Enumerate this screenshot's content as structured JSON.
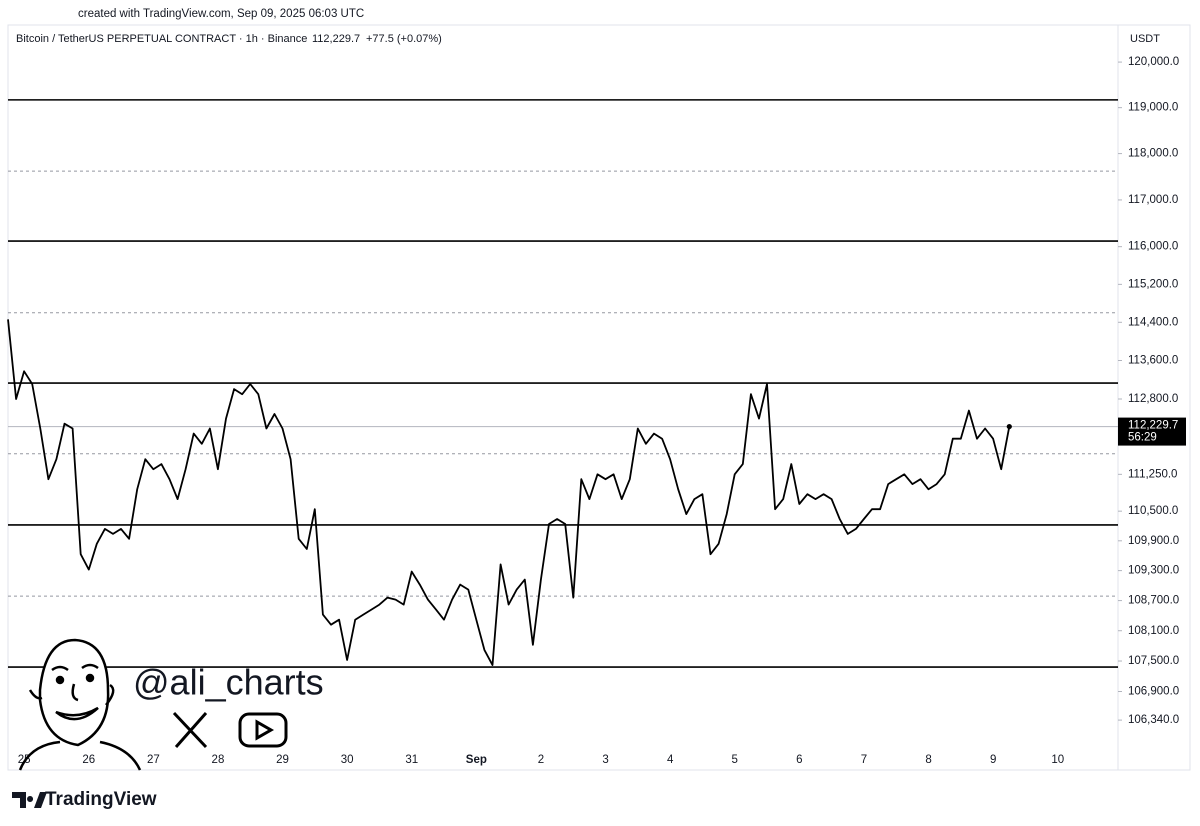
{
  "chart_data": {
    "type": "line",
    "header": "created with TradingView.com, Sep 09, 2025 06:03 UTC",
    "title": "Bitcoin / TetherUS PERPETUAL CONTRACT · 1h · Binance",
    "change": "+77.5 (+0.07%)",
    "currency": "USDT",
    "countdown": "56:29",
    "watermark": "@ali_charts",
    "footer": "TradingView",
    "last_price": {
      "value": 112229.7,
      "label": "112,229.7"
    },
    "color": "#000000",
    "log_scale": true,
    "ylim": [
      105370,
      120820
    ],
    "yticks": [
      {
        "value": 120000,
        "label": "120,000.0"
      },
      {
        "value": 119000,
        "label": "119,000.0"
      },
      {
        "value": 118000,
        "label": "118,000.0"
      },
      {
        "value": 117000,
        "label": "117,000.0"
      },
      {
        "value": 116000,
        "label": "116,000.0"
      },
      {
        "value": 115200,
        "label": "115,200.0"
      },
      {
        "value": 114400,
        "label": "114,400.0"
      },
      {
        "value": 113600,
        "label": "113,600.0"
      },
      {
        "value": 112800,
        "label": "112,800.0"
      },
      {
        "value": 111250,
        "label": "111,250.0"
      },
      {
        "value": 110500,
        "label": "110,500.0"
      },
      {
        "value": 109900,
        "label": "109,900.0"
      },
      {
        "value": 109300,
        "label": "109,300.0"
      },
      {
        "value": 108700,
        "label": "108,700.0"
      },
      {
        "value": 108100,
        "label": "108,100.0"
      },
      {
        "value": 107500,
        "label": "107,500.0"
      },
      {
        "value": 106900,
        "label": "106,900.0"
      },
      {
        "value": 106340,
        "label": "106,340.0"
      }
    ],
    "hlines": [
      {
        "value": 119170,
        "style": "solid"
      },
      {
        "value": 117620,
        "style": "dashed"
      },
      {
        "value": 116120,
        "style": "solid"
      },
      {
        "value": 114600,
        "style": "dashed"
      },
      {
        "value": 113130,
        "style": "solid"
      },
      {
        "value": 111670,
        "style": "dashed"
      },
      {
        "value": 110220,
        "style": "solid"
      },
      {
        "value": 108790,
        "style": "dashed"
      },
      {
        "value": 107380,
        "style": "solid"
      }
    ],
    "categories": [
      null,
      null,
      "25",
      null,
      null,
      null,
      null,
      null,
      null,
      null,
      "26",
      null,
      null,
      null,
      null,
      null,
      null,
      null,
      "27",
      null,
      null,
      null,
      null,
      null,
      null,
      null,
      "28",
      null,
      null,
      null,
      null,
      null,
      null,
      null,
      "29",
      null,
      null,
      null,
      null,
      null,
      null,
      null,
      "30",
      null,
      null,
      null,
      null,
      null,
      null,
      null,
      "31",
      null,
      null,
      null,
      null,
      null,
      null,
      null,
      "Sep",
      null,
      null,
      null,
      null,
      null,
      null,
      null,
      "2",
      null,
      null,
      null,
      null,
      null,
      null,
      null,
      "3",
      null,
      null,
      null,
      null,
      null,
      null,
      null,
      "4",
      null,
      null,
      null,
      null,
      null,
      null,
      null,
      "5",
      null,
      null,
      null,
      null,
      null,
      null,
      null,
      "6",
      null,
      null,
      null,
      null,
      null,
      null,
      null,
      "7",
      null,
      null,
      null,
      null,
      null,
      null,
      null,
      "8",
      null,
      null,
      null,
      null,
      null,
      null,
      null,
      "9",
      null,
      null,
      null,
      null,
      null,
      null,
      null,
      "10"
    ],
    "values": [
      114460,
      112800,
      113375,
      113110,
      112190,
      111150,
      111560,
      112290,
      112190,
      109630,
      109320,
      109840,
      110140,
      110040,
      110140,
      109940,
      110945,
      111560,
      111355,
      111460,
      111150,
      110745,
      111355,
      112085,
      111875,
      112190,
      111355,
      112395,
      113005,
      112900,
      113110,
      112900,
      112190,
      112490,
      112190,
      111560,
      109940,
      109735,
      110540,
      108420,
      108220,
      108320,
      107520,
      108320,
      108420,
      108520,
      108620,
      108760,
      108720,
      108620,
      109280,
      109020,
      108720,
      108520,
      108320,
      108720,
      109020,
      108920,
      108320,
      107720,
      107420,
      109425,
      108620,
      108920,
      109120,
      107820,
      109120,
      110240,
      110340,
      110240,
      108760,
      111150,
      110745,
      111250,
      111150,
      111250,
      110745,
      111150,
      112190,
      111875,
      112085,
      111980,
      111560,
      110945,
      110440,
      110745,
      110845,
      109630,
      109840,
      110440,
      111250,
      111460,
      112900,
      112395,
      113110,
      110540,
      110745,
      111460,
      110645,
      110845,
      110745,
      110845,
      110745,
      110340,
      110040,
      110140,
      110340,
      110540,
      110540,
      111050,
      111150,
      111250,
      111050,
      111150,
      110945,
      111050,
      111250,
      111980,
      111980,
      112560,
      111980,
      112190,
      111980,
      111355,
      112229.7,
      null,
      null,
      null,
      null,
      null,
      null
    ]
  }
}
